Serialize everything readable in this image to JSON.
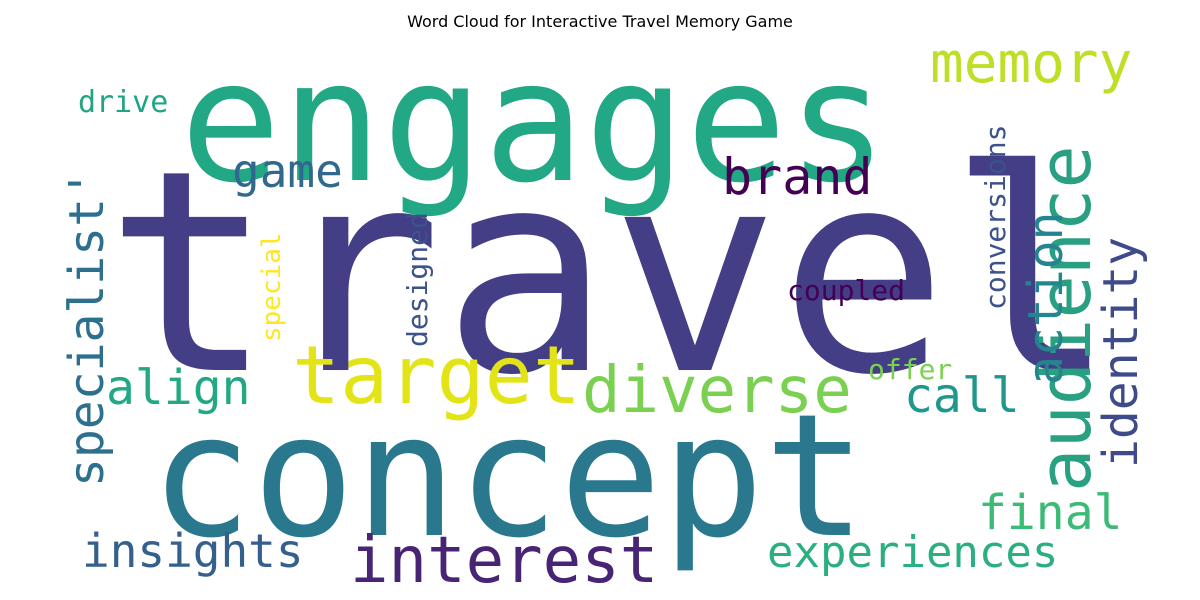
{
  "title": "Word Cloud for Interactive Travel Memory Game",
  "words": [
    {
      "text": "travel",
      "color": "#433e85"
    },
    {
      "text": "engages",
      "color": "#22a884"
    },
    {
      "text": "concept",
      "color": "#2a788e"
    },
    {
      "text": "target",
      "color": "#e3e418"
    },
    {
      "text": "audience",
      "color": "#2aa082"
    },
    {
      "text": "diverse",
      "color": "#7ad151"
    },
    {
      "text": "interest",
      "color": "#482475"
    },
    {
      "text": "memory",
      "color": "#bddf26"
    },
    {
      "text": "brand",
      "color": "#440154"
    },
    {
      "text": "game",
      "color": "#31688e"
    },
    {
      "text": "action",
      "color": "#25858e"
    },
    {
      "text": "identity",
      "color": "#3e4a89"
    },
    {
      "text": "specialist'",
      "color": "#2d708e"
    },
    {
      "text": "align",
      "color": "#22a884"
    },
    {
      "text": "call",
      "color": "#1f988b"
    },
    {
      "text": "insights",
      "color": "#35608d"
    },
    {
      "text": "experiences",
      "color": "#2ab07f"
    },
    {
      "text": "final",
      "color": "#3bbb75"
    },
    {
      "text": "drive",
      "color": "#20a486"
    },
    {
      "text": "conversions",
      "color": "#3b528b"
    },
    {
      "text": "designed",
      "color": "#3b528b"
    },
    {
      "text": "coupled",
      "color": "#440154"
    },
    {
      "text": "special",
      "color": "#fde725"
    },
    {
      "text": "offer",
      "color": "#7ad151"
    }
  ]
}
